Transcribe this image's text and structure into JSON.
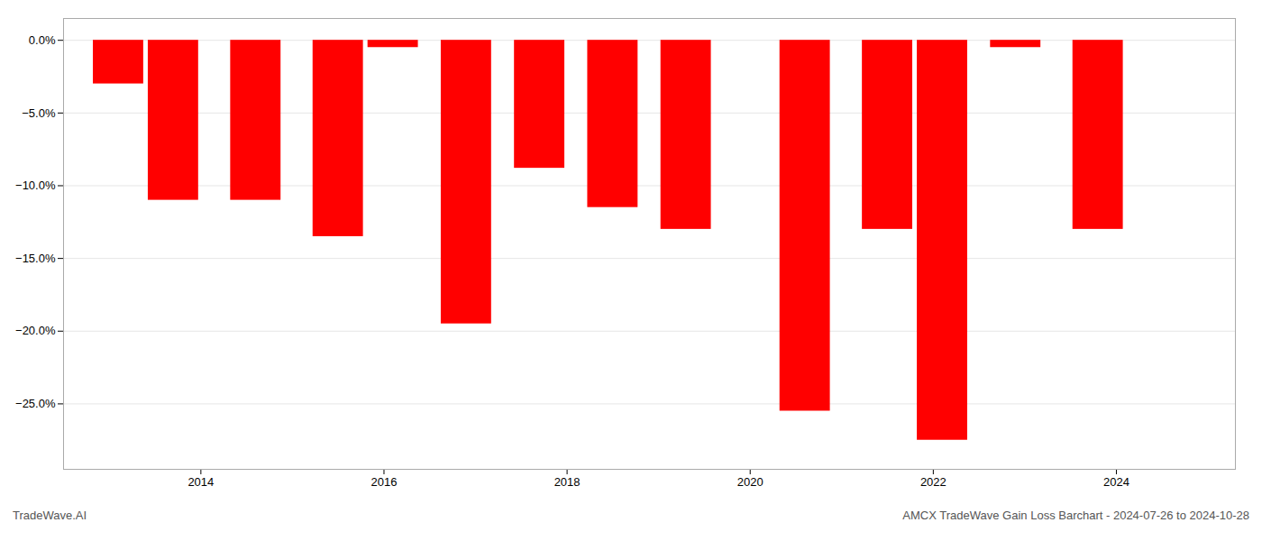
{
  "chart_data": {
    "type": "bar",
    "x": [
      2013.1,
      2013.7,
      2014.6,
      2015.5,
      2016.1,
      2016.9,
      2017.7,
      2018.5,
      2019.3,
      2020.6,
      2021.5,
      2022.1,
      2022.9,
      2023.8
    ],
    "values": [
      -3.0,
      -11.0,
      -11.0,
      -13.5,
      -0.5,
      -19.5,
      -8.8,
      -11.5,
      -13.0,
      -25.5,
      -13.0,
      -27.5,
      -0.5,
      -13.0
    ],
    "color": "#FF0000",
    "xlim": [
      2012.5,
      2025.3
    ],
    "xticks": [
      2014,
      2016,
      2018,
      2020,
      2022,
      2024
    ],
    "ylim": [
      -29.5,
      1.5
    ],
    "yticks": [
      {
        "value": 0.0,
        "label": "0.0%"
      },
      {
        "value": -5.0,
        "label": "−5.0%"
      },
      {
        "value": -10.0,
        "label": "−10.0%"
      },
      {
        "value": -15.0,
        "label": "−15.0%"
      },
      {
        "value": -20.0,
        "label": "−20.0%"
      },
      {
        "value": -25.0,
        "label": "−25.0%"
      }
    ],
    "grid": true,
    "annotations": [
      "TradeWave.AI",
      "AMCX TradeWave Gain Loss Barchart - 2024-07-26 to 2024-10-28"
    ]
  }
}
